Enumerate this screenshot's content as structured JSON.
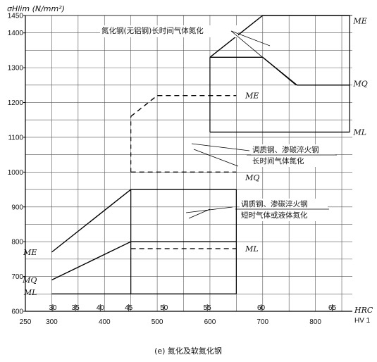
{
  "chart_data": {
    "type": "line",
    "ylabel": "σHlim (N/mm²)",
    "caption": "(e) 氮化及软氮化钢",
    "hv_label": "HV 1",
    "hrc_label": "HRC",
    "hv_ticks": [
      250,
      300,
      400,
      500,
      600,
      700,
      800
    ],
    "hrc_ticks": [
      {
        "label": "30",
        "hv": 302
      },
      {
        "label": "35",
        "hv": 345
      },
      {
        "label": "40",
        "hv": 392
      },
      {
        "label": "45",
        "hv": 446
      },
      {
        "label": "50",
        "hv": 513
      },
      {
        "label": "55",
        "hv": 595
      },
      {
        "label": "60",
        "hv": 697
      },
      {
        "label": "65",
        "hv": 832
      }
    ],
    "y_ticks": [
      600,
      700,
      800,
      900,
      1000,
      1100,
      1200,
      1300,
      1400,
      1450
    ],
    "xlim": [
      250,
      870
    ],
    "ylim": [
      600,
      1450
    ],
    "series": [
      {
        "name": "ME",
        "material": "调质钢、渗碳淬火钢 短时气体或液体氮化",
        "style": "solid",
        "x": [
          300,
          450,
          650
        ],
        "y": [
          770,
          950,
          950
        ]
      },
      {
        "name": "MQ",
        "material": "调质钢、渗碳淬火钢 短时气体或液体氮化",
        "style": "solid",
        "x": [
          300,
          450,
          650
        ],
        "y": [
          690,
          800,
          800
        ]
      },
      {
        "name": "ML",
        "material": "调质钢、渗碳淬火钢 短时气体或液体氮化",
        "style": "solid",
        "x": [
          300,
          650
        ],
        "y": [
          650,
          650
        ]
      },
      {
        "name": "ML-dash",
        "style": "dashed",
        "x": [
          450,
          650
        ],
        "y": [
          780,
          780
        ]
      },
      {
        "name": "ME",
        "material": "调质钢、渗碳淬火钢 长时间气体氮化",
        "style": "dashed",
        "x": [
          450,
          500,
          650
        ],
        "y": [
          1160,
          1220,
          1220
        ]
      },
      {
        "name": "MQ",
        "material": "调质钢、渗碳淬火钢 长时间气体氮化",
        "style": "dashed",
        "x": [
          450,
          650
        ],
        "y": [
          1000,
          1000
        ]
      },
      {
        "name": "ME",
        "material": "氮化钢(无铝钢)长时间气体氮化",
        "style": "solid",
        "x": [
          600,
          700,
          865
        ],
        "y": [
          1330,
          1450,
          1450
        ]
      },
      {
        "name": "MQ",
        "material": "氮化钢(无铝钢)长时间气体氮化",
        "style": "solid",
        "x": [
          600,
          700,
          765,
          865
        ],
        "y": [
          1330,
          1330,
          1250,
          1250
        ]
      },
      {
        "name": "ML",
        "material": "氮化钢(无铝钢)长时间气体氮化",
        "style": "solid",
        "x": [
          600,
          865
        ],
        "y": [
          1115,
          1115
        ]
      }
    ],
    "labels": [
      {
        "text": "ME",
        "x": 272,
        "y": 770
      },
      {
        "text": "MQ",
        "x": 272,
        "y": 690
      },
      {
        "text": "ML",
        "x": 272,
        "y": 655
      },
      {
        "text": "ML",
        "x": 667,
        "y": 780
      },
      {
        "text": "MQ",
        "x": 667,
        "y": 985
      },
      {
        "text": "ME",
        "x": 667,
        "y": 1220
      },
      {
        "text": "ME",
        "x": 872,
        "y": 1435
      },
      {
        "text": "MQ",
        "x": 872,
        "y": 1255
      },
      {
        "text": "ML",
        "x": 872,
        "y": 1115
      }
    ],
    "annotations": [
      {
        "lines": [
          "氮化钢(无铝钢)长时间气体氮化"
        ]
      },
      {
        "lines": [
          "调质钢、渗碳淬火钢",
          "长时间气体氮化"
        ]
      },
      {
        "lines": [
          "调质钢、渗碳淬火钢",
          "短时气体或液体氮化"
        ]
      }
    ]
  }
}
